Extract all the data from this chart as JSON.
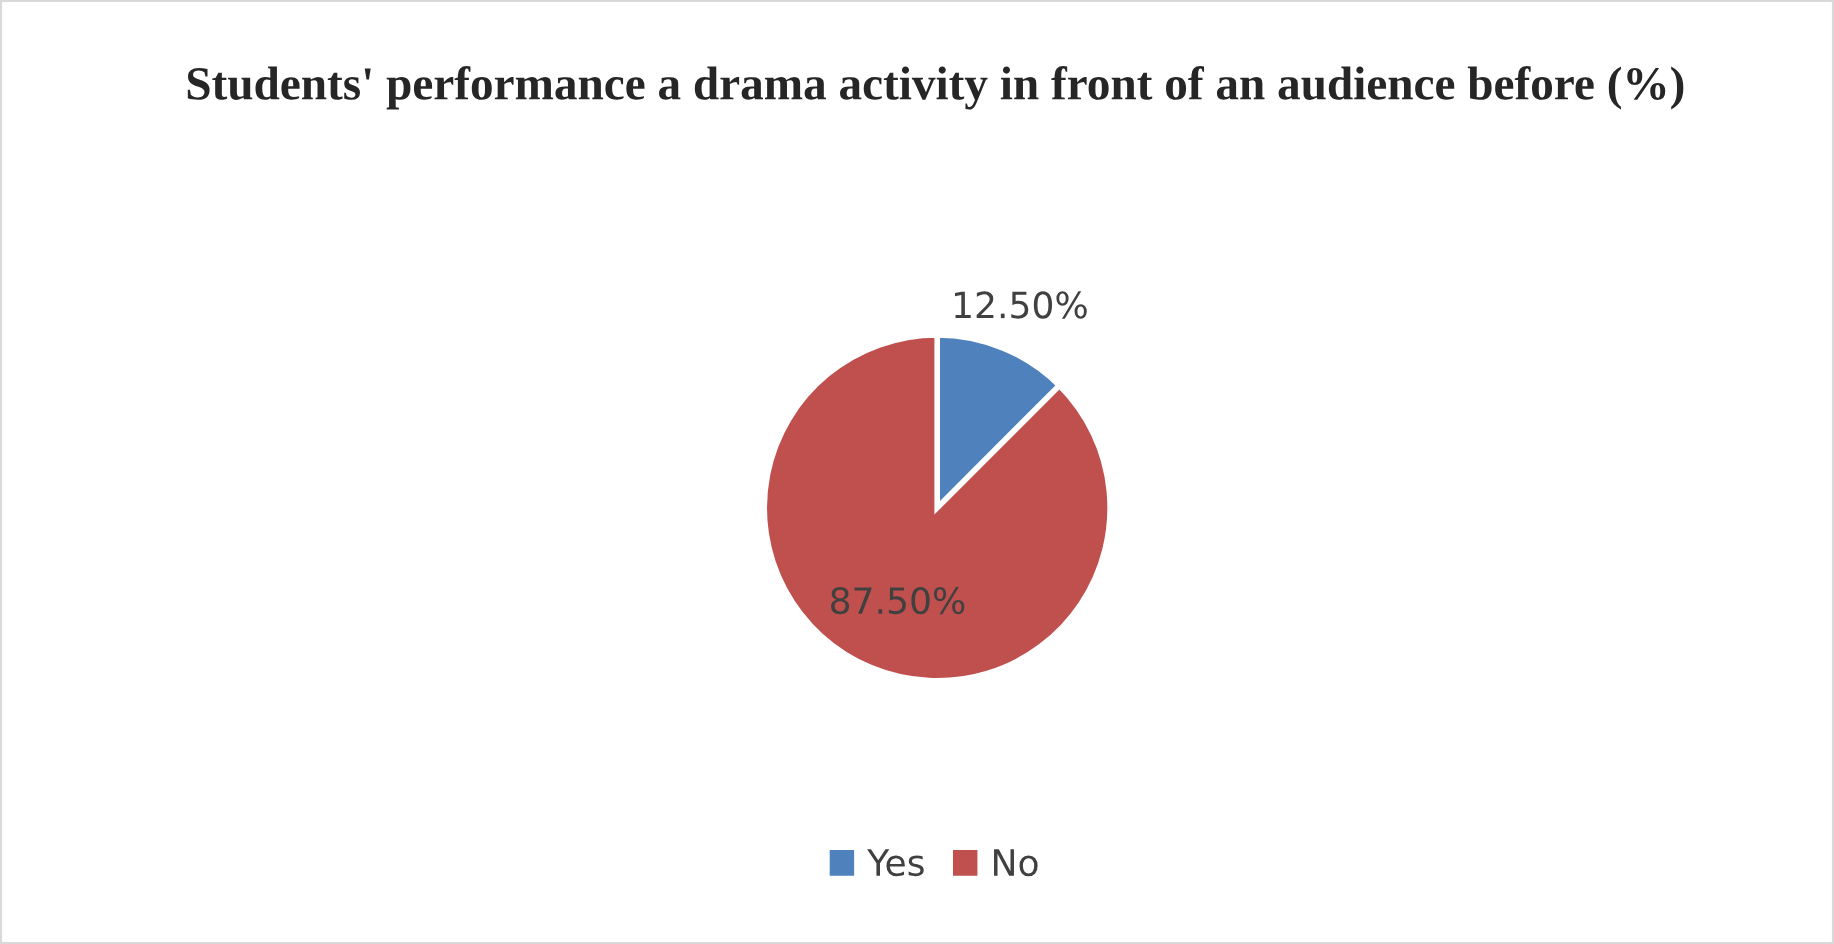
{
  "chart_data": {
    "type": "pie",
    "title": "Students' performance a drama activity in front of an audience before (%)",
    "categories": [
      "Yes",
      "No"
    ],
    "values": [
      12.5,
      87.5
    ],
    "colors": [
      "#4f81bd",
      "#c0504d"
    ],
    "value_labels": [
      "12.50%",
      "87.50%"
    ],
    "legend": "bottom"
  }
}
